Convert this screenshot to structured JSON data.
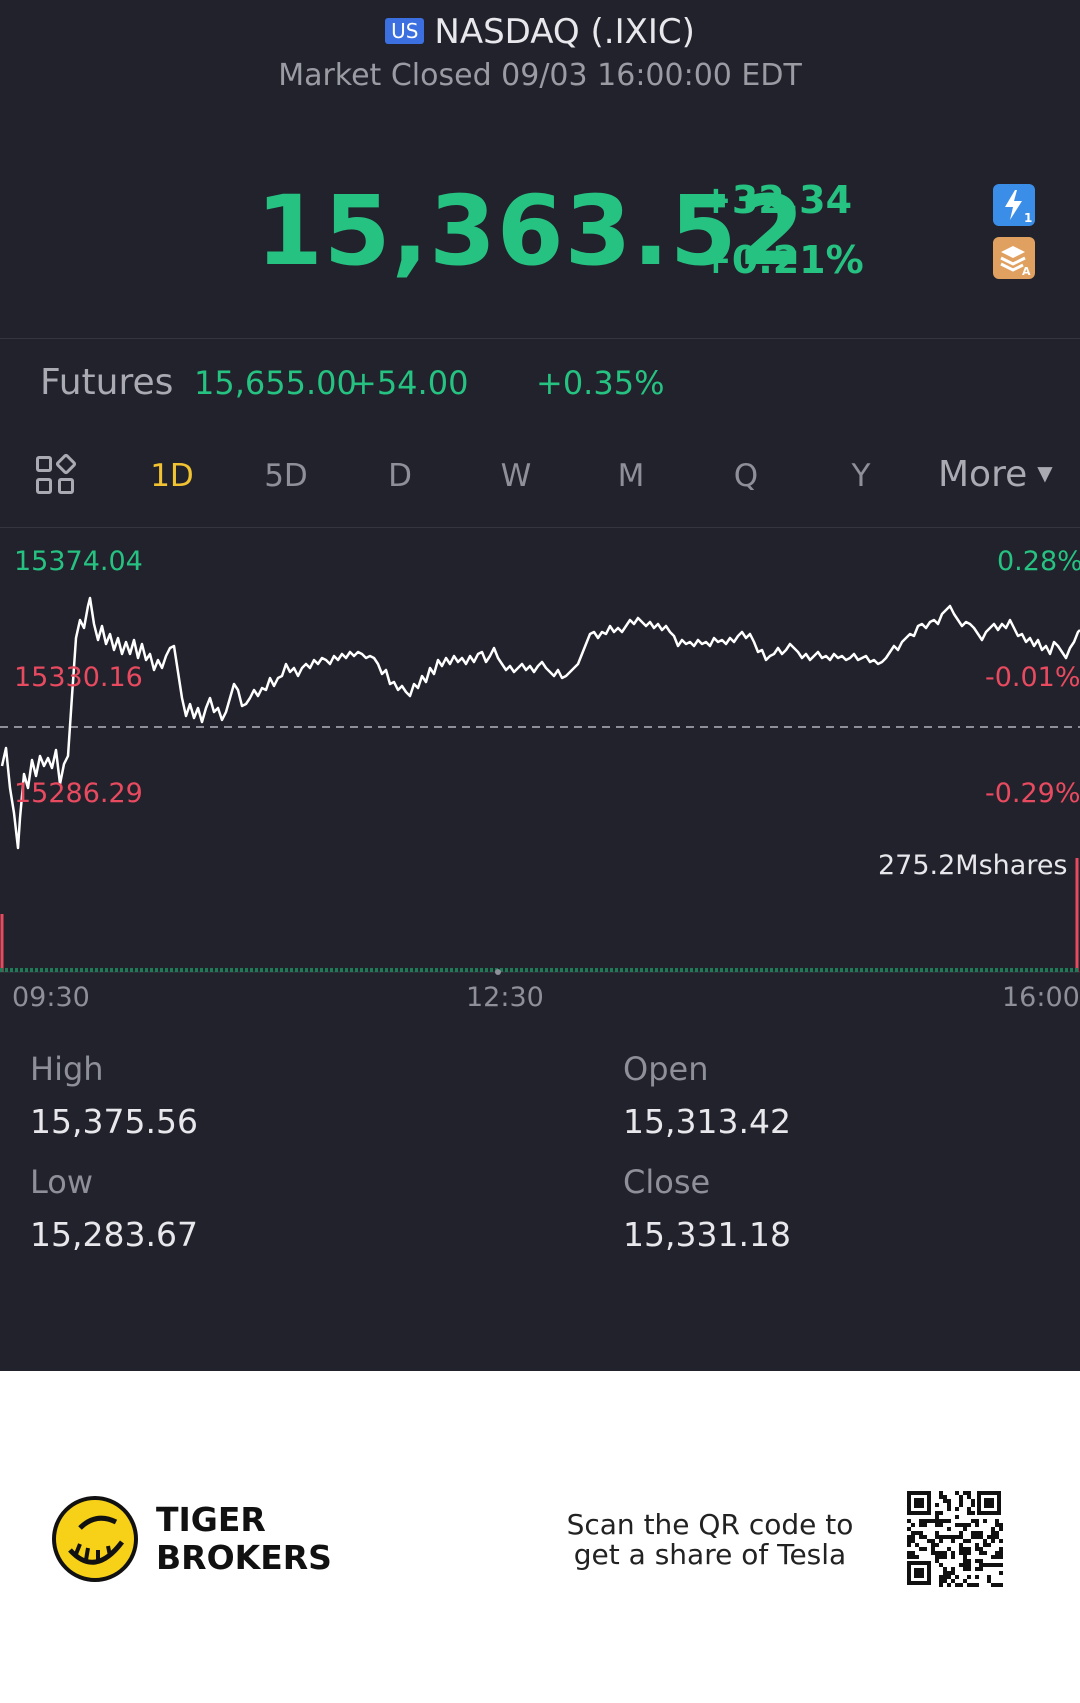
{
  "header": {
    "market_badge": "US",
    "title": "NASDAQ (.IXIC)",
    "status": "Market Closed 09/03 16:00:00 EDT"
  },
  "quote": {
    "price": "15,363.52",
    "change": "+32.34",
    "change_pct": "+0.21%",
    "color": "#26c281"
  },
  "futures": {
    "label": "Futures",
    "value": "15,655.00",
    "change": "+54.00",
    "change_pct": "+0.35%"
  },
  "period_tabs": [
    {
      "label": "1D",
      "active": true
    },
    {
      "label": "5D"
    },
    {
      "label": "D"
    },
    {
      "label": "W"
    },
    {
      "label": "M"
    },
    {
      "label": "Q"
    },
    {
      "label": "Y"
    }
  ],
  "more_label": "More",
  "chart": {
    "high_label": "15374.04",
    "mid_label": "15330.16",
    "low_label": "15286.29",
    "high_pct": "0.28%",
    "mid_pct": "-0.01%",
    "low_pct": "-0.29%",
    "volume_label": "275.2Mshares",
    "time_start": "09:30",
    "time_mid": "12:30",
    "time_end": "16:00",
    "up_color": "#26c281",
    "down_color": "#e84a5f"
  },
  "stats": {
    "high_label": "High",
    "high_value": "15,375.56",
    "open_label": "Open",
    "open_value": "15,313.42",
    "low_label": "Low",
    "low_value": "15,283.67",
    "close_label": "Close",
    "close_value": "15,331.18"
  },
  "footer": {
    "brand_line1": "TIGER",
    "brand_line2": "BROKERS",
    "promo_line1": "Scan the QR code to",
    "promo_line2": "get a share of Tesla"
  }
}
